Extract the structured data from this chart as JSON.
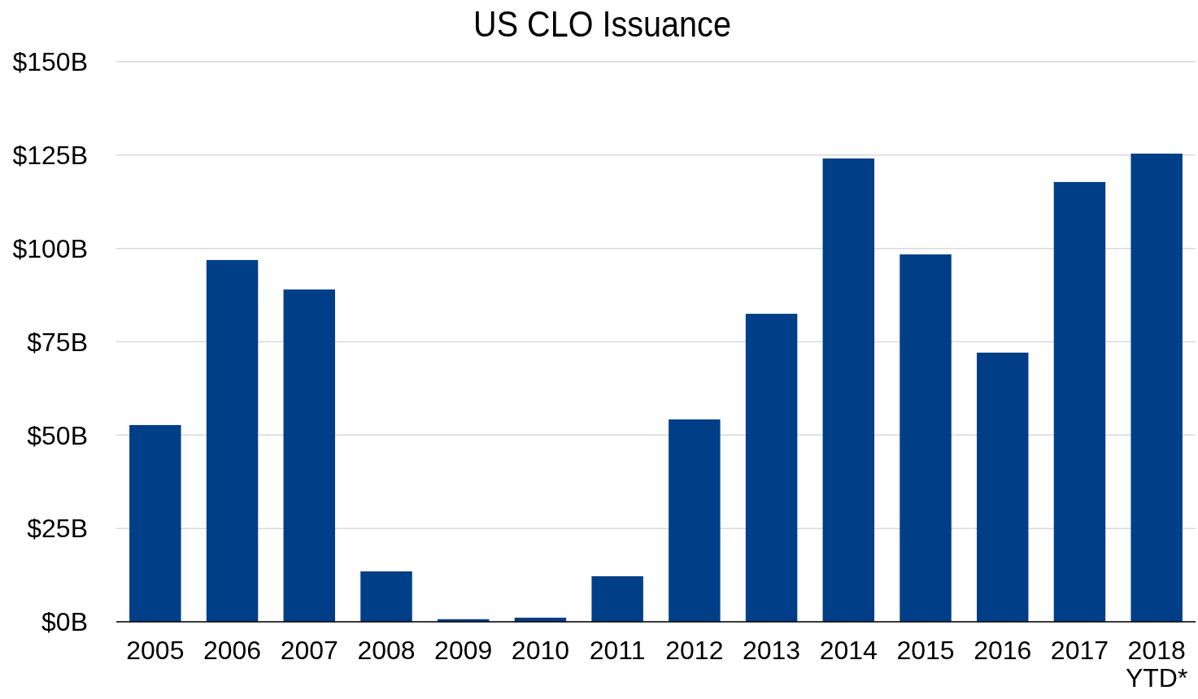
{
  "chart_data": {
    "type": "bar",
    "title": "US CLO Issuance",
    "categories": [
      "2005",
      "2006",
      "2007",
      "2008",
      "2009",
      "2010",
      "2011",
      "2012",
      "2013",
      "2014",
      "2015",
      "2016",
      "2017",
      "2018\nYTD*"
    ],
    "values": [
      52.7,
      96.9,
      89.0,
      13.5,
      0.7,
      1.1,
      12.2,
      54.2,
      82.5,
      124.1,
      98.4,
      72.1,
      117.8,
      125.4
    ],
    "color": "#003f87",
    "ylim": [
      0,
      150
    ],
    "yticks": [
      {
        "value": 0,
        "label": "$0B"
      },
      {
        "value": 25,
        "label": "$25B"
      },
      {
        "value": 50,
        "label": "$50B"
      },
      {
        "value": 75,
        "label": "$75B"
      },
      {
        "value": 100,
        "label": "$100B"
      },
      {
        "value": 125,
        "label": "$125B"
      },
      {
        "value": 150,
        "label": "$150B"
      }
    ],
    "grid": "y"
  }
}
